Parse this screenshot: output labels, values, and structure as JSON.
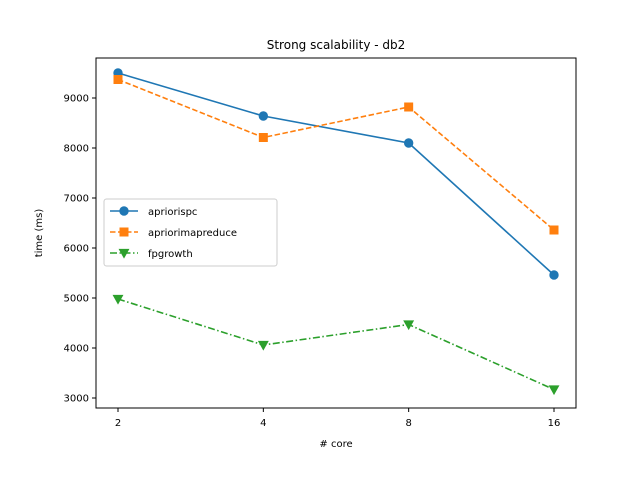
{
  "chart_data": {
    "type": "line",
    "title": "Strong scalability - db2",
    "xlabel": "# core",
    "ylabel": "time (ms)",
    "categories": [
      "2",
      "4",
      "8",
      "16"
    ],
    "yticks": [
      3000,
      4000,
      5000,
      6000,
      7000,
      8000,
      9000
    ],
    "ylim": [
      2800,
      9800
    ],
    "grid": false,
    "legend_position": "center-left",
    "series": [
      {
        "name": "apriorispc",
        "values": [
          9500,
          8640,
          8100,
          5460
        ],
        "color": "#1f77b4",
        "linestyle": "solid",
        "marker": "circle"
      },
      {
        "name": "apriorimapreduce",
        "values": [
          9370,
          8210,
          8820,
          6360
        ],
        "color": "#ff7f0e",
        "linestyle": "dashed",
        "marker": "square"
      },
      {
        "name": "fpgrowth",
        "values": [
          4980,
          4060,
          4470,
          3170
        ],
        "color": "#2ca02c",
        "linestyle": "dashdot",
        "marker": "triangle-down"
      }
    ]
  }
}
